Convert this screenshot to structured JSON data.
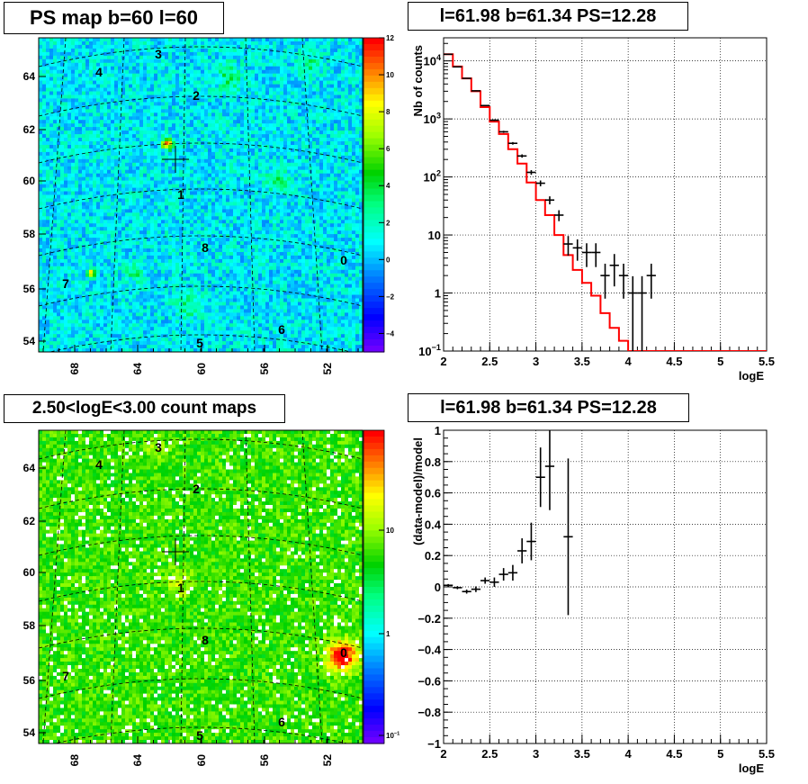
{
  "panels": {
    "tl": {
      "title": "PS map b=60 l=60"
    },
    "tr": {
      "title": "l=61.98 b=61.34 PS=12.28"
    },
    "bl": {
      "title": "2.50<logE<3.00 count maps"
    },
    "br": {
      "title": "l=61.98 b=61.34 PS=12.28"
    }
  },
  "chart_data": [
    {
      "id": "ps-map",
      "type": "heatmap",
      "title": "PS map b=60 l=60",
      "x_ticks": [
        "68",
        "64",
        "60",
        "56",
        "52"
      ],
      "y_ticks": [
        "54",
        "56",
        "58",
        "60",
        "62",
        "64"
      ],
      "xlim": [
        70,
        49.5
      ],
      "ylim": [
        53.6,
        65.2
      ],
      "colorbar": {
        "scale": "linear",
        "range": [
          -5,
          12
        ],
        "ticks": [
          "12",
          "10",
          "8",
          "6",
          "4",
          "2",
          "0",
          "−2",
          "−4"
        ]
      },
      "sources": [
        {
          "label": "0",
          "x": 50.9,
          "y": 56.9
        },
        {
          "label": "1",
          "x": 61.3,
          "y": 59.6
        },
        {
          "label": "2",
          "x": 60.4,
          "y": 63.1
        },
        {
          "label": "3",
          "x": 62.7,
          "y": 64.6
        },
        {
          "label": "4",
          "x": 66.8,
          "y": 63.9
        },
        {
          "label": "5",
          "x": 60.1,
          "y": 53.7
        },
        {
          "label": "6",
          "x": 54.7,
          "y": 54.3
        },
        {
          "label": "7",
          "x": 69.0,
          "y": 56.1
        },
        {
          "label": "8",
          "x": 59.8,
          "y": 57.5
        }
      ],
      "marker": {
        "x": 61.98,
        "y": 61.34
      }
    },
    {
      "id": "spectrum",
      "type": "line",
      "title": "l=61.98 b=61.34 PS=12.28",
      "xlabel": "logE",
      "ylabel": "Nb of counts",
      "yscale": "log",
      "xlim": [
        2,
        5.5
      ],
      "ylim": [
        0.1,
        25000
      ],
      "x_ticks": [
        "2",
        "2.5",
        "3",
        "3.5",
        "4",
        "4.5",
        "5",
        "5.5"
      ],
      "y_ticks": [
        "10<sup>−1</sup>",
        "1",
        "10",
        "10<sup>2</sup>",
        "10<sup>3</sup>",
        "10<sup>4</sup>"
      ],
      "bin_width": 0.1,
      "model_series": {
        "color": "#ff0000",
        "x": [
          2.0,
          2.1,
          2.2,
          2.3,
          2.4,
          2.5,
          2.6,
          2.7,
          2.8,
          2.9,
          3.0,
          3.1,
          3.2,
          3.3,
          3.4,
          3.5,
          3.6,
          3.7,
          3.8,
          3.9,
          4.0,
          4.1,
          4.2,
          4.3,
          4.4,
          4.5,
          4.6,
          4.7,
          4.8,
          4.9,
          5.0,
          5.1,
          5.2,
          5.3,
          5.4
        ],
        "values": [
          13000,
          8000,
          5000,
          3000,
          1600,
          900,
          550,
          300,
          170,
          80,
          40,
          22,
          10,
          4.5,
          2.5,
          1.5,
          0.9,
          0.45,
          0.25,
          0.15,
          0.1,
          0.1,
          0.1,
          0.1,
          0.1,
          0.1,
          0.1,
          0.1,
          0.1,
          0.1,
          0.1,
          0.1,
          0.1,
          0.1,
          0.1
        ]
      },
      "data_points": [
        {
          "x": 2.05,
          "y": 13000,
          "yerr": 114
        },
        {
          "x": 2.15,
          "y": 7900,
          "yerr": 89
        },
        {
          "x": 2.25,
          "y": 5000,
          "yerr": 71
        },
        {
          "x": 2.35,
          "y": 3050,
          "yerr": 55
        },
        {
          "x": 2.45,
          "y": 1700,
          "yerr": 41
        },
        {
          "x": 2.55,
          "y": 950,
          "yerr": 31
        },
        {
          "x": 2.65,
          "y": 600,
          "yerr": 24
        },
        {
          "x": 2.75,
          "y": 380,
          "yerr": 19
        },
        {
          "x": 2.85,
          "y": 230,
          "yerr": 15
        },
        {
          "x": 2.95,
          "y": 120,
          "yerr": 11
        },
        {
          "x": 3.05,
          "y": 78,
          "yerr": 9
        },
        {
          "x": 3.15,
          "y": 40,
          "yerr": 6.3
        },
        {
          "x": 3.25,
          "y": 22,
          "yerr": 4.7
        },
        {
          "x": 3.35,
          "y": 7,
          "yerr": 2.6
        },
        {
          "x": 3.45,
          "y": 6,
          "yerr": 2.4
        },
        {
          "x": 3.55,
          "y": 5,
          "yerr": 2.2
        },
        {
          "x": 3.65,
          "y": 5,
          "yerr": 2.2
        },
        {
          "x": 3.75,
          "y": 2,
          "yerr": 1.2
        },
        {
          "x": 3.85,
          "y": 3,
          "yerr": 1.7
        },
        {
          "x": 3.95,
          "y": 2,
          "yerr": 1.2
        },
        {
          "x": 4.05,
          "y": 1,
          "yerr": 0.95
        },
        {
          "x": 4.15,
          "y": 1,
          "yerr": 0.95
        },
        {
          "x": 4.25,
          "y": 2,
          "yerr": 1.2
        }
      ]
    },
    {
      "id": "count-map",
      "type": "heatmap",
      "title": "2.50<logE<3.00 count maps",
      "x_ticks": [
        "68",
        "64",
        "60",
        "56",
        "52"
      ],
      "y_ticks": [
        "54",
        "56",
        "58",
        "60",
        "62",
        "64"
      ],
      "xlim": [
        70,
        49.5
      ],
      "ylim": [
        53.6,
        65.2
      ],
      "colorbar": {
        "scale": "log",
        "ticks": [
          "10",
          "1",
          "10<sup>−1</sup>"
        ]
      },
      "sources": [
        {
          "label": "0",
          "x": 50.9,
          "y": 56.9
        },
        {
          "label": "1",
          "x": 61.3,
          "y": 59.6
        },
        {
          "label": "2",
          "x": 60.4,
          "y": 63.1
        },
        {
          "label": "3",
          "x": 62.7,
          "y": 64.6
        },
        {
          "label": "4",
          "x": 66.8,
          "y": 63.9
        },
        {
          "label": "5",
          "x": 60.1,
          "y": 53.7
        },
        {
          "label": "6",
          "x": 54.7,
          "y": 54.3
        },
        {
          "label": "7",
          "x": 69.0,
          "y": 56.1
        },
        {
          "label": "8",
          "x": 59.8,
          "y": 57.5
        }
      ],
      "marker": {
        "x": 61.98,
        "y": 61.34
      }
    },
    {
      "id": "residuals",
      "type": "scatter",
      "title": "l=61.98 b=61.34 PS=12.28",
      "xlabel": "logE",
      "ylabel": "(data-model)/model",
      "xlim": [
        2,
        5.5
      ],
      "ylim": [
        -1,
        1
      ],
      "x_ticks": [
        "2",
        "2.5",
        "3",
        "3.5",
        "4",
        "4.5",
        "5",
        "5.5"
      ],
      "y_ticks": [
        "−1",
        "−0.8",
        "−0.6",
        "−0.4",
        "−0.2",
        "0",
        "0.2",
        "0.4",
        "0.6",
        "0.8",
        "1"
      ],
      "bin_width": 0.1,
      "data_points": [
        {
          "x": 2.05,
          "y": 0.01,
          "yerr": 0.008
        },
        {
          "x": 2.15,
          "y": -0.005,
          "yerr": 0.01
        },
        {
          "x": 2.25,
          "y": -0.03,
          "yerr": 0.013
        },
        {
          "x": 2.35,
          "y": -0.015,
          "yerr": 0.018
        },
        {
          "x": 2.45,
          "y": 0.04,
          "yerr": 0.02
        },
        {
          "x": 2.55,
          "y": 0.03,
          "yerr": 0.03
        },
        {
          "x": 2.65,
          "y": 0.08,
          "yerr": 0.04
        },
        {
          "x": 2.75,
          "y": 0.09,
          "yerr": 0.05
        },
        {
          "x": 2.85,
          "y": 0.23,
          "yerr": 0.08
        },
        {
          "x": 2.95,
          "y": 0.29,
          "yerr": 0.12
        },
        {
          "x": 3.05,
          "y": 0.7,
          "yerr": 0.19
        },
        {
          "x": 3.15,
          "y": 0.77,
          "yerr": 0.28
        },
        {
          "x": 3.35,
          "y": 0.32,
          "yerr": 0.5
        }
      ]
    }
  ]
}
